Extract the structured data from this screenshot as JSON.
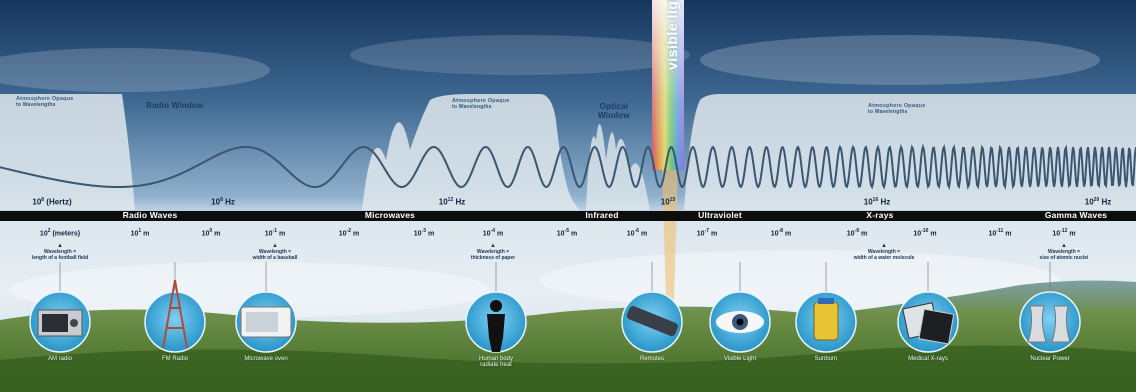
{
  "bands": {
    "atm_opaque_1": {
      "title": "Atmosphere Opaque",
      "sub": "to Wavelengths"
    },
    "radio_window": "Radio Window",
    "atm_opaque_2": {
      "title": "Atmosphere Opaque",
      "sub": "to Wavelengths"
    },
    "optical_window": "Optical\nWindow",
    "atm_opaque_3": {
      "title": "Atmosphere Opaque",
      "sub": "to Wavelengths"
    }
  },
  "visible_light": "visible light",
  "frequencies": [
    {
      "base": "10",
      "exp": "8",
      "unit": " (Hertz)"
    },
    {
      "base": "10",
      "exp": "8",
      "unit": " Hz"
    },
    {
      "base": "10",
      "exp": "12",
      "unit": " Hz"
    },
    {
      "base": "10",
      "exp": "15",
      "unit": ""
    },
    {
      "base": "10",
      "exp": "16",
      "unit": " Hz"
    },
    {
      "base": "10",
      "exp": "20",
      "unit": " Hz"
    }
  ],
  "regions": [
    "Radio Waves",
    "Microwaves",
    "Infrared",
    "Ultraviolet",
    "X-rays",
    "Gamma Waves"
  ],
  "wavelengths": [
    {
      "base": "10",
      "exp": "2",
      "unit": " (meters)"
    },
    {
      "base": "10",
      "exp": "1",
      "unit": " m"
    },
    {
      "base": "10",
      "exp": "0",
      "unit": " m"
    },
    {
      "base": "10",
      "exp": "-1",
      "unit": " m"
    },
    {
      "base": "10",
      "exp": "-2",
      "unit": " m"
    },
    {
      "base": "10",
      "exp": "-3",
      "unit": " m"
    },
    {
      "base": "10",
      "exp": "-4",
      "unit": " m"
    },
    {
      "base": "10",
      "exp": "-5",
      "unit": " m"
    },
    {
      "base": "10",
      "exp": "-6",
      "unit": " m"
    },
    {
      "base": "10",
      "exp": "-7",
      "unit": " m"
    },
    {
      "base": "10",
      "exp": "-8",
      "unit": " m"
    },
    {
      "base": "10",
      "exp": "-9",
      "unit": " m"
    },
    {
      "base": "10",
      "exp": "-10",
      "unit": " m"
    },
    {
      "base": "10",
      "exp": "-11",
      "unit": " m"
    },
    {
      "base": "10",
      "exp": "-12",
      "unit": " m"
    }
  ],
  "wavelength_notes": [
    "Wavelength =\nlength of a football field",
    "Wavelength =\nwidth of a baseball",
    "Wavelength =\nthickness of paper",
    "Wavelength =\nwidth of a water molecule",
    "Wavelength =\nsize of atomic nuclei"
  ],
  "sources": [
    "AM radio",
    "FM Radio",
    "Microwave oven",
    "Human body\nradiate heat",
    "Remotes",
    "Visible Light",
    "Sunburn",
    "Medical X-rays",
    "Nuclear Power"
  ],
  "colors": {
    "sky_top": "#16365d",
    "sky_mid": "#5d8ab6",
    "sky_low": "#c9d9e6",
    "band_strip": "#0d0d0d",
    "wave": "#3a5670",
    "circle": "#2e9fd3",
    "hills": "#4f7a2f"
  }
}
